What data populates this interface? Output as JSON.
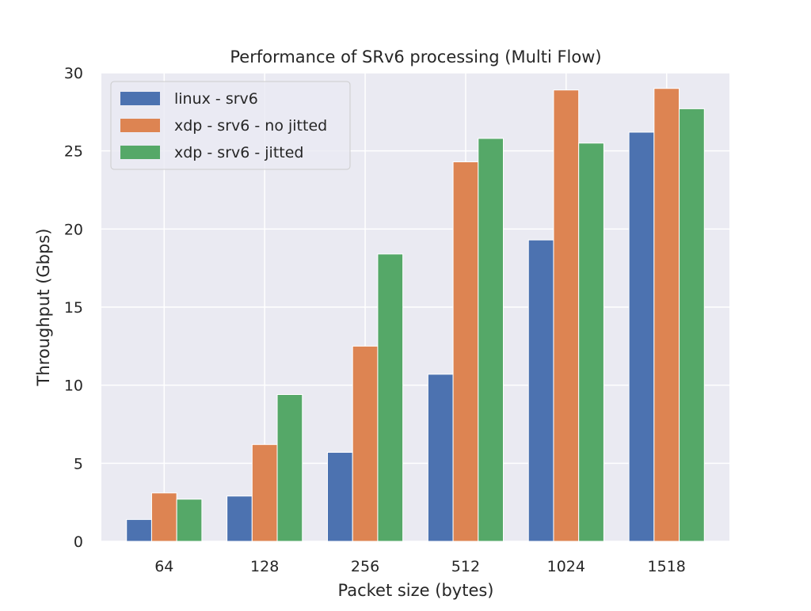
{
  "chart_data": {
    "type": "bar",
    "title": "Performance of SRv6 processing (Multi Flow)",
    "xlabel": "Packet size (bytes)",
    "ylabel": "Throughput (Gbps)",
    "categories": [
      "64",
      "128",
      "256",
      "512",
      "1024",
      "1518"
    ],
    "ylim": [
      0,
      30
    ],
    "yticks": [
      "0",
      "5",
      "10",
      "15",
      "20",
      "25",
      "30"
    ],
    "grid": true,
    "legend_position": "top-left",
    "series": [
      {
        "name": "linux - srv6",
        "color": "#4c72b0",
        "values": [
          1.4,
          2.9,
          5.7,
          10.7,
          19.3,
          26.2
        ]
      },
      {
        "name": "xdp - srv6 - no jitted",
        "color": "#dd8452",
        "values": [
          3.1,
          6.2,
          12.5,
          24.3,
          28.9,
          29.0
        ]
      },
      {
        "name": "xdp - srv6 - jitted",
        "color": "#55a868",
        "values": [
          2.7,
          9.4,
          18.4,
          25.8,
          25.5,
          27.7
        ]
      }
    ],
    "colors": {
      "plot_background": "#eaeaf2",
      "grid": "#ffffff",
      "text": "#262626"
    }
  }
}
